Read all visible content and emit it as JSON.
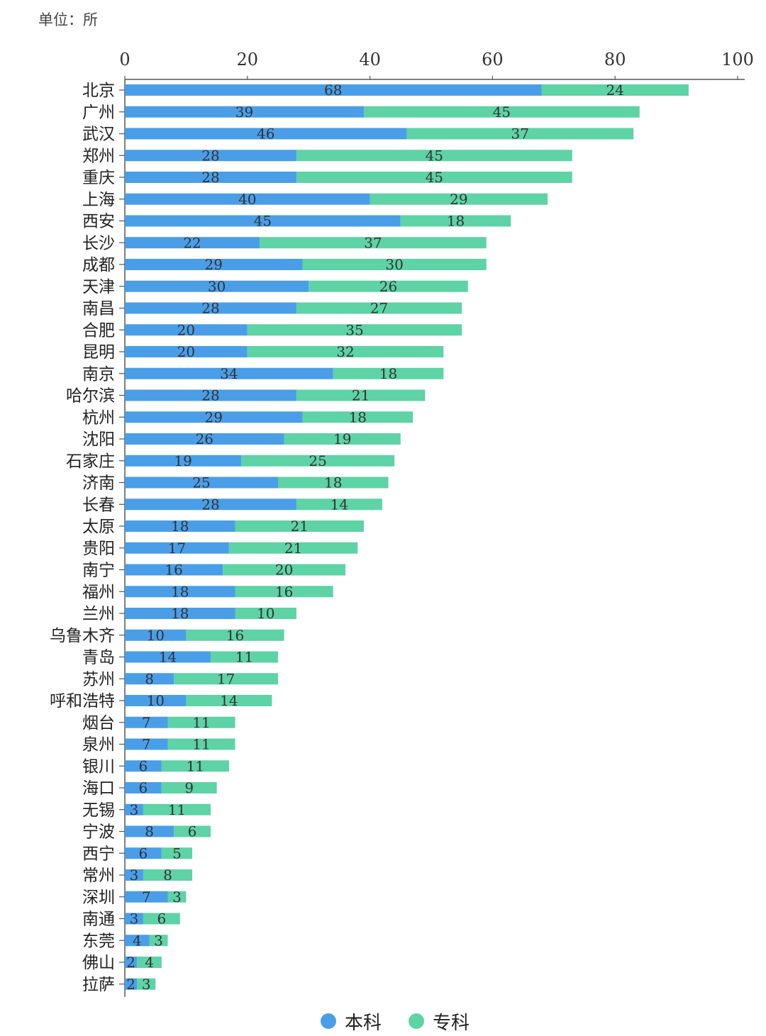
{
  "unit_label": "单位：所",
  "chart_data": {
    "type": "bar",
    "orientation": "horizontal",
    "stacked": true,
    "xlim": [
      0,
      100
    ],
    "x_ticks": [
      "0",
      "20",
      "40",
      "60",
      "80",
      "100"
    ],
    "x_axis_position": "top",
    "grid": false,
    "legend_position": "bottom",
    "categories": [
      "北京",
      "广州",
      "武汉",
      "郑州",
      "重庆",
      "上海",
      "西安",
      "长沙",
      "成都",
      "天津",
      "南昌",
      "合肥",
      "昆明",
      "南京",
      "哈尔滨",
      "杭州",
      "沈阳",
      "石家庄",
      "济南",
      "长春",
      "太原",
      "贵阳",
      "南宁",
      "福州",
      "兰州",
      "乌鲁木齐",
      "青岛",
      "苏州",
      "呼和浩特",
      "烟台",
      "泉州",
      "银川",
      "海口",
      "无锡",
      "宁波",
      "西宁",
      "常州",
      "深圳",
      "南通",
      "东莞",
      "佛山",
      "拉萨"
    ],
    "series": [
      {
        "name": "本科",
        "color": "#4a9ee8",
        "values": [
          68,
          39,
          46,
          28,
          28,
          40,
          45,
          22,
          29,
          30,
          28,
          20,
          20,
          34,
          28,
          29,
          26,
          19,
          25,
          28,
          18,
          17,
          16,
          18,
          18,
          10,
          14,
          8,
          10,
          7,
          7,
          6,
          6,
          3,
          8,
          6,
          3,
          7,
          3,
          4,
          2,
          2
        ]
      },
      {
        "name": "专科",
        "color": "#5dd3a6",
        "values": [
          24,
          45,
          37,
          45,
          45,
          29,
          18,
          37,
          30,
          26,
          27,
          35,
          32,
          18,
          21,
          18,
          19,
          25,
          18,
          14,
          21,
          21,
          20,
          16,
          10,
          16,
          11,
          17,
          14,
          11,
          11,
          11,
          9,
          11,
          6,
          5,
          8,
          3,
          6,
          3,
          4,
          3
        ]
      }
    ]
  }
}
